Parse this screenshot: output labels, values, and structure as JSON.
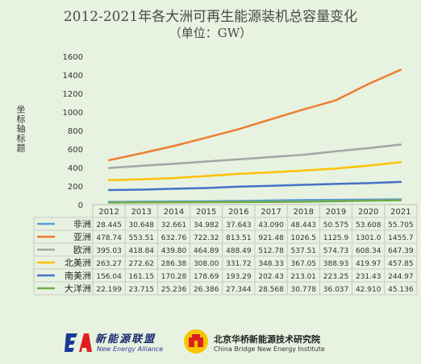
{
  "title": "2012-2021年各大洲可再生能源装机总容量变化",
  "subtitle": "（单位：GW）",
  "chart_data": {
    "type": "line",
    "title": "2012-2021年各大洲可再生能源装机总容量变化",
    "subtitle": "（单位：GW）",
    "xlabel": "",
    "ylabel": "坐标轴标题",
    "ylim": [
      0,
      1600
    ],
    "yticks": [
      0,
      200,
      400,
      600,
      800,
      1000,
      1200,
      1400,
      1600
    ],
    "grid": false,
    "legend": "data-table-left",
    "categories": [
      "2012",
      "2013",
      "2014",
      "2015",
      "2016",
      "2017",
      "2018",
      "2019",
      "2020",
      "2021"
    ],
    "series": [
      {
        "name": "非洲",
        "color": "#5b9bd5",
        "values": [
          28.445,
          30.648,
          32.661,
          34.982,
          37.643,
          43.09,
          48.443,
          50.575,
          53.608,
          55.705
        ],
        "labels": [
          "28.445",
          "30.648",
          "32.661",
          "34.982",
          "37.643",
          "43.090",
          "48.443",
          "50.575",
          "53.608",
          "55.705"
        ]
      },
      {
        "name": "亚洲",
        "color": "#ed7d31",
        "values": [
          478.74,
          553.51,
          632.76,
          722.32,
          813.51,
          921.48,
          1026.5,
          1125.9,
          1301.0,
          1455.7
        ],
        "labels": [
          "478.74",
          "553.51",
          "632.76",
          "722.32",
          "813.51",
          "921.48",
          "1026.5",
          "1125.9",
          "1301.0",
          "1455.7"
        ]
      },
      {
        "name": "欧洲",
        "color": "#a5a5a5",
        "values": [
          395.03,
          418.84,
          439.8,
          464.89,
          488.49,
          512.78,
          537.51,
          574.73,
          608.34,
          647.39
        ],
        "labels": [
          "395.03",
          "418.84",
          "439.80",
          "464.89",
          "488.49",
          "512.78",
          "537.51",
          "574.73",
          "608.34",
          "647.39"
        ]
      },
      {
        "name": "北美洲",
        "color": "#ffc000",
        "values": [
          263.27,
          272.62,
          286.38,
          308.0,
          331.72,
          348.33,
          367.05,
          388.93,
          419.97,
          457.85
        ],
        "labels": [
          "263.27",
          "272.62",
          "286.38",
          "308.00",
          "331.72",
          "348.33",
          "367.05",
          "388.93",
          "419.97",
          "457.85"
        ]
      },
      {
        "name": "南美洲",
        "color": "#4472c4",
        "values": [
          156.04,
          161.15,
          170.28,
          178.69,
          193.29,
          202.43,
          213.01,
          223.25,
          231.43,
          244.97
        ],
        "labels": [
          "156.04",
          "161.15",
          "170.28",
          "178.69",
          "193.29",
          "202.43",
          "213.01",
          "223.25",
          "231.43",
          "244.97"
        ]
      },
      {
        "name": "大洋洲",
        "color": "#70ad47",
        "values": [
          22.199,
          23.715,
          25.236,
          26.386,
          27.344,
          28.568,
          30.778,
          36.037,
          42.91,
          45.136
        ],
        "labels": [
          "22.199",
          "23.715",
          "25.236",
          "26.386",
          "27.344",
          "28.568",
          "30.778",
          "36.037",
          "42.910",
          "45.136"
        ]
      }
    ]
  },
  "footer": {
    "ea_cn": "新能源联盟",
    "ea_en": "New Energy Alliance",
    "cb_cn": "北京华桥新能源技术研究院",
    "cb_en": "China Bridge New Energy Institute"
  }
}
